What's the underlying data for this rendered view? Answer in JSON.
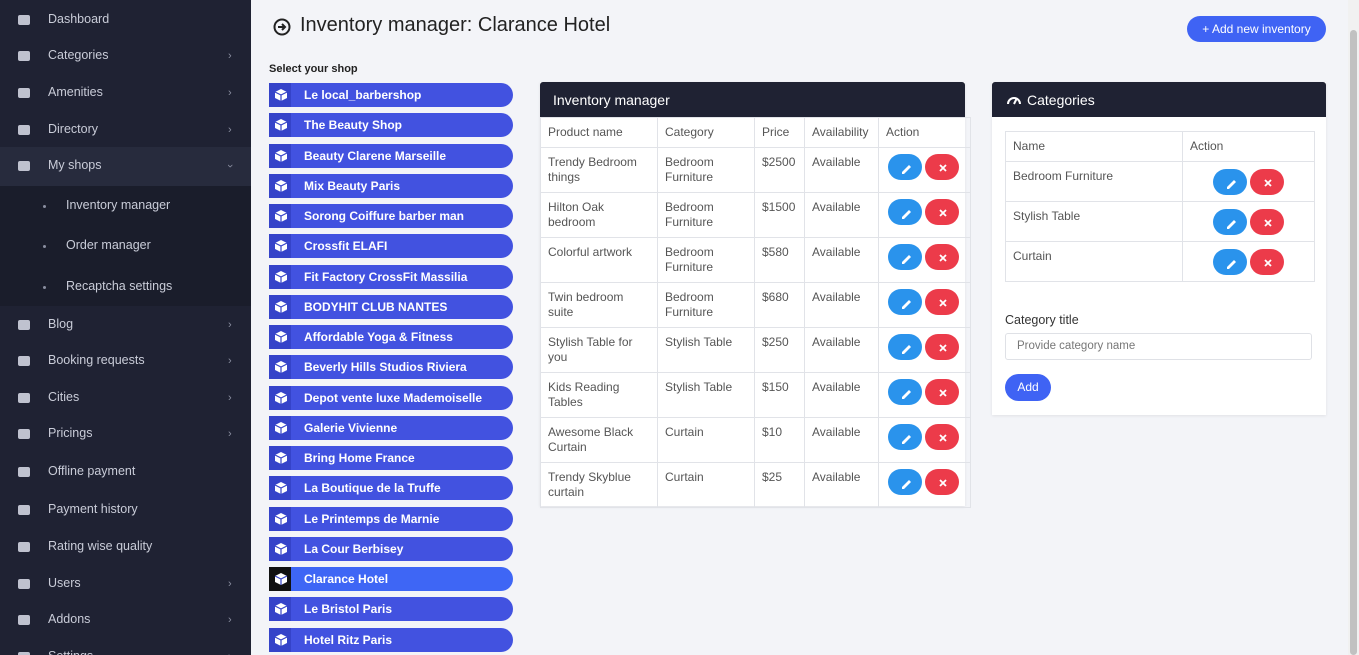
{
  "sidebar": {
    "menu": [
      {
        "label": "Dashboard",
        "expandable": false
      },
      {
        "label": "Categories",
        "expandable": true
      },
      {
        "label": "Amenities",
        "expandable": true
      },
      {
        "label": "Directory",
        "expandable": true
      },
      {
        "label": "My shops",
        "expandable": true,
        "open": true,
        "children": [
          "Inventory manager",
          "Order manager",
          "Recaptcha settings"
        ]
      },
      {
        "label": "Blog",
        "expandable": true
      },
      {
        "label": "Booking requests",
        "expandable": true
      },
      {
        "label": "Cities",
        "expandable": true
      },
      {
        "label": "Pricings",
        "expandable": true
      },
      {
        "label": "Offline payment",
        "expandable": false
      },
      {
        "label": "Payment history",
        "expandable": false
      },
      {
        "label": "Rating wise quality",
        "expandable": false
      },
      {
        "label": "Users",
        "expandable": true
      },
      {
        "label": "Addons",
        "expandable": true
      },
      {
        "label": "Settings",
        "expandable": true
      }
    ]
  },
  "header": {
    "title": "Inventory manager: Clarance Hotel",
    "button": "+ Add new inventory"
  },
  "shops": {
    "label": "Select your shop",
    "selected": 16,
    "items": [
      "Le local_barbershop",
      "The Beauty Shop",
      "Beauty Clarene Marseille",
      "Mix Beauty Paris",
      "Sorong Coiffure barber man",
      "Crossfit ELAFI",
      "Fit Factory CrossFit Massilia",
      "BODYHIT CLUB NANTES",
      "Affordable Yoga & Fitness",
      "Beverly Hills Studios Riviera",
      "Depot vente luxe Mademoiselle",
      "Galerie Vivienne",
      "Bring Home France",
      "La Boutique de la Truffe",
      "Le Printemps de Marnie",
      "La Cour Berbisey",
      "Clarance Hotel",
      "Le Bristol Paris",
      "Hotel Ritz Paris"
    ]
  },
  "inventory": {
    "title": "Inventory manager",
    "columns": [
      "Product name",
      "Category",
      "Price",
      "Availability",
      "Action"
    ],
    "rows": [
      [
        "Trendy Bedroom things",
        "Bedroom Furniture",
        "$2500",
        "Available"
      ],
      [
        "Hilton Oak bedroom",
        "Bedroom Furniture",
        "$1500",
        "Available"
      ],
      [
        "Colorful artwork",
        "Bedroom Furniture",
        "$580",
        "Available"
      ],
      [
        "Twin bedroom suite",
        "Bedroom Furniture",
        "$680",
        "Available"
      ],
      [
        "Stylish Table for you",
        "Stylish Table",
        "$250",
        "Available"
      ],
      [
        "Kids Reading Tables",
        "Stylish Table",
        "$150",
        "Available"
      ],
      [
        "Awesome Black Curtain",
        "Curtain",
        "$10",
        "Available"
      ],
      [
        "Trendy Skyblue curtain",
        "Curtain",
        "$25",
        "Available"
      ]
    ]
  },
  "categories": {
    "title": "Categories",
    "columns": [
      "Name",
      "Action"
    ],
    "rows": [
      "Bedroom Furniture",
      "Stylish Table",
      "Curtain"
    ],
    "form": {
      "label": "Category title",
      "placeholder": "Provide category name",
      "button": "Add"
    }
  }
}
